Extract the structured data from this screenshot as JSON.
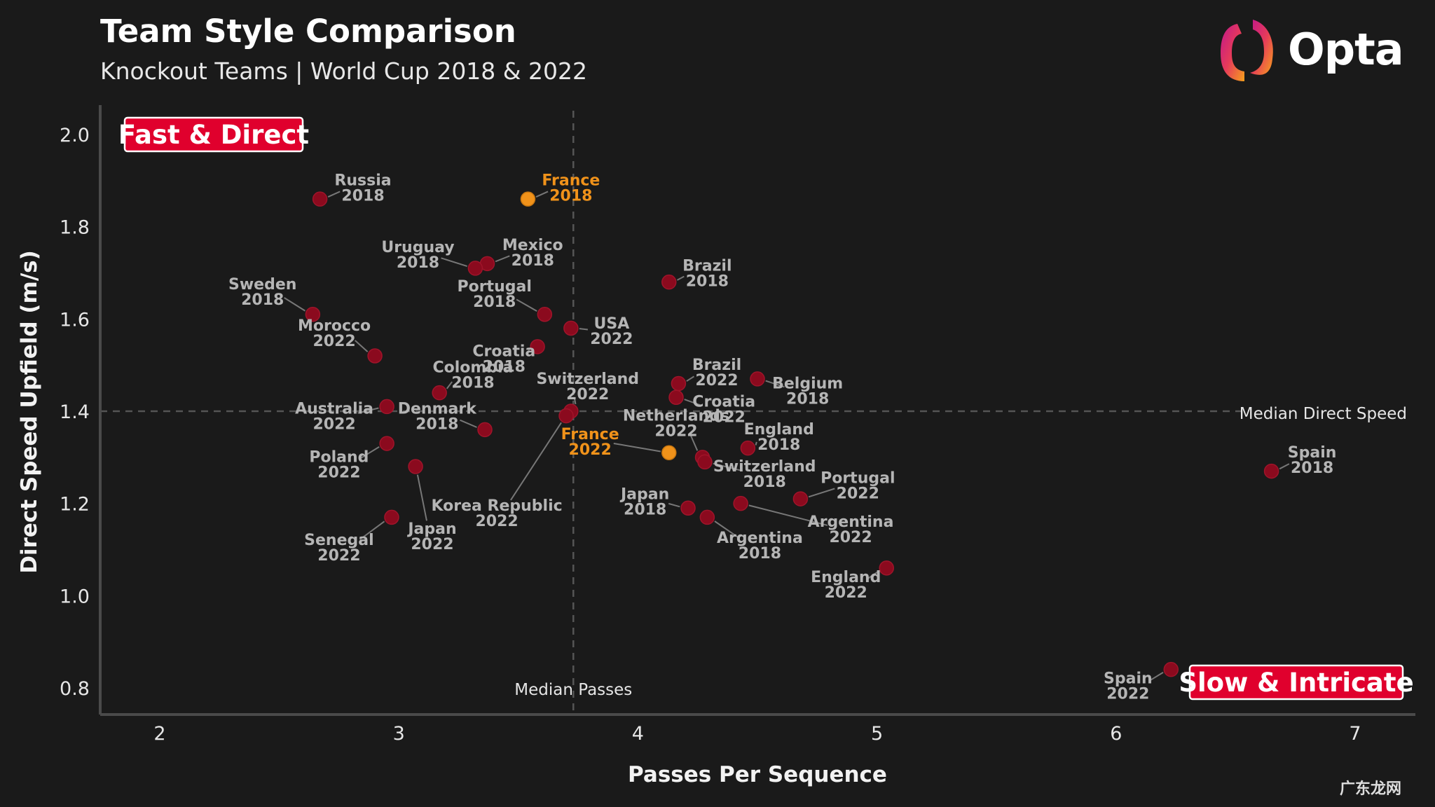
{
  "header": {
    "title": "Team Style Comparison",
    "subtitle": "Knockout Teams | World Cup 2018 & 2022",
    "logo_text": "Opta"
  },
  "watermark": "广东龙网",
  "colors": {
    "background": "#1a1a1a",
    "point_default": "#8b0a1e",
    "point_highlight": "#f0921a",
    "label_default": "#b5b5b5",
    "label_highlight": "#f0921a",
    "quadrant_box": "#e0002d"
  },
  "chart_data": {
    "type": "scatter",
    "title": "Team Style Comparison",
    "subtitle": "Knockout Teams | World Cup 2018 & 2022",
    "xlabel": "Passes Per Sequence",
    "ylabel": "Direct Speed Upfield (m/s)",
    "xlim": [
      1.75,
      7.25
    ],
    "ylim": [
      0.74,
      2.05
    ],
    "xticks": [
      2,
      3,
      4,
      5,
      6,
      7
    ],
    "yticks": [
      0.8,
      1.0,
      1.2,
      1.4,
      1.6,
      1.8,
      2.0
    ],
    "xtick_labels": [
      "2",
      "3",
      "4",
      "5",
      "6",
      "7"
    ],
    "ytick_labels": [
      "0.8",
      "1.0",
      "1.2",
      "1.4",
      "1.6",
      "1.8",
      "2.0"
    ],
    "median_x": 3.73,
    "median_y": 1.4,
    "median_x_label": "Median Passes",
    "median_y_label": "Median Direct Speed",
    "quadrant_labels": {
      "top_left": "Fast & Direct",
      "bottom_right": "Slow & Intricate"
    },
    "points": [
      {
        "team": "Russia",
        "year": "2018",
        "x": 2.67,
        "y": 1.86,
        "highlight": false,
        "lx": 2.85,
        "ly": 1.885
      },
      {
        "team": "France",
        "year": "2018",
        "x": 3.54,
        "y": 1.86,
        "highlight": true,
        "lx": 3.72,
        "ly": 1.885
      },
      {
        "team": "Mexico",
        "year": "2018",
        "x": 3.37,
        "y": 1.72,
        "highlight": false,
        "lx": 3.56,
        "ly": 1.745
      },
      {
        "team": "Uruguay",
        "year": "2018",
        "x": 3.32,
        "y": 1.71,
        "highlight": false,
        "lx": 3.08,
        "ly": 1.74
      },
      {
        "team": "Brazil",
        "year": "2018",
        "x": 4.13,
        "y": 1.68,
        "highlight": false,
        "lx": 4.29,
        "ly": 1.7
      },
      {
        "team": "Sweden",
        "year": "2018",
        "x": 2.64,
        "y": 1.61,
        "highlight": false,
        "lx": 2.43,
        "ly": 1.66
      },
      {
        "team": "Portugal",
        "year": "2018",
        "x": 3.61,
        "y": 1.61,
        "highlight": false,
        "lx": 3.4,
        "ly": 1.655
      },
      {
        "team": "USA",
        "year": "2022",
        "x": 3.72,
        "y": 1.58,
        "highlight": false,
        "lx": 3.89,
        "ly": 1.575
      },
      {
        "team": "Morocco",
        "year": "2022",
        "x": 2.9,
        "y": 1.52,
        "highlight": false,
        "lx": 2.73,
        "ly": 1.57
      },
      {
        "team": "Croatia",
        "year": "2018",
        "x": 3.58,
        "y": 1.54,
        "highlight": false,
        "lx": 3.44,
        "ly": 1.515
      },
      {
        "team": "Colombia",
        "year": "2018",
        "x": 3.17,
        "y": 1.44,
        "highlight": false,
        "lx": 3.31,
        "ly": 1.48
      },
      {
        "team": "Brazil",
        "year": "2022",
        "x": 4.17,
        "y": 1.46,
        "highlight": false,
        "lx": 4.33,
        "ly": 1.485
      },
      {
        "team": "Belgium",
        "year": "2018",
        "x": 4.5,
        "y": 1.47,
        "highlight": false,
        "lx": 4.71,
        "ly": 1.445
      },
      {
        "team": "Switzerland",
        "year": "2022",
        "x": 3.72,
        "y": 1.4,
        "highlight": false,
        "lx": 3.79,
        "ly": 1.455
      },
      {
        "team": "Croatia",
        "year": "2022",
        "x": 4.16,
        "y": 1.43,
        "highlight": false,
        "lx": 4.36,
        "ly": 1.405
      },
      {
        "team": "Australia",
        "year": "2022",
        "x": 2.95,
        "y": 1.41,
        "highlight": false,
        "lx": 2.73,
        "ly": 1.39
      },
      {
        "team": "Denmark",
        "year": "2018",
        "x": 3.36,
        "y": 1.36,
        "highlight": false,
        "lx": 3.16,
        "ly": 1.39
      },
      {
        "team": "Netherlands",
        "year": "2022",
        "x": 4.27,
        "y": 1.3,
        "highlight": false,
        "lx": 4.16,
        "ly": 1.375
      },
      {
        "team": "England",
        "year": "2018",
        "x": 4.46,
        "y": 1.32,
        "highlight": false,
        "lx": 4.59,
        "ly": 1.345
      },
      {
        "team": "France",
        "year": "2022",
        "x": 4.13,
        "y": 1.31,
        "highlight": true,
        "lx": 3.8,
        "ly": 1.335
      },
      {
        "team": "Spain",
        "year": "2018",
        "x": 6.65,
        "y": 1.27,
        "highlight": false,
        "lx": 6.82,
        "ly": 1.295
      },
      {
        "team": "Poland",
        "year": "2022",
        "x": 2.95,
        "y": 1.33,
        "highlight": false,
        "lx": 2.75,
        "ly": 1.285
      },
      {
        "team": "Korea Republic",
        "year": "2022",
        "x": 3.7,
        "y": 1.39,
        "highlight": false,
        "lx": 3.41,
        "ly": 1.18
      },
      {
        "team": "Switzerland",
        "year": "2018",
        "x": 4.28,
        "y": 1.29,
        "highlight": false,
        "lx": 4.53,
        "ly": 1.265
      },
      {
        "team": "Portugal",
        "year": "2022",
        "x": 4.68,
        "y": 1.21,
        "highlight": false,
        "lx": 4.92,
        "ly": 1.24
      },
      {
        "team": "Japan",
        "year": "2022",
        "x": 3.07,
        "y": 1.28,
        "highlight": false,
        "lx": 3.14,
        "ly": 1.13
      },
      {
        "team": "Japan",
        "year": "2018",
        "x": 4.21,
        "y": 1.19,
        "highlight": false,
        "lx": 4.03,
        "ly": 1.205
      },
      {
        "team": "Argentina",
        "year": "2022",
        "x": 4.43,
        "y": 1.2,
        "highlight": false,
        "lx": 4.89,
        "ly": 1.145
      },
      {
        "team": "Argentina",
        "year": "2018",
        "x": 4.29,
        "y": 1.17,
        "highlight": false,
        "lx": 4.51,
        "ly": 1.11
      },
      {
        "team": "Senegal",
        "year": "2022",
        "x": 2.97,
        "y": 1.17,
        "highlight": false,
        "lx": 2.75,
        "ly": 1.105
      },
      {
        "team": "England",
        "year": "2022",
        "x": 5.04,
        "y": 1.06,
        "highlight": false,
        "lx": 4.87,
        "ly": 1.025
      },
      {
        "team": "Spain",
        "year": "2022",
        "x": 6.23,
        "y": 0.84,
        "highlight": false,
        "lx": 6.05,
        "ly": 0.805
      }
    ]
  }
}
